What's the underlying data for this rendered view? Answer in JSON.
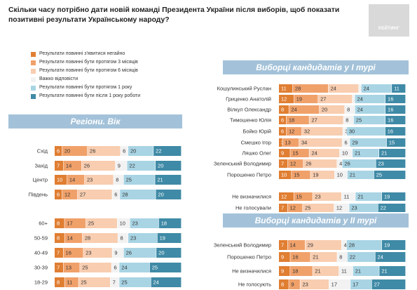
{
  "title": "Скільки часу потрібно дати новій команді Президента України після виборів, щоб показати позитивні результати Українському народу?",
  "logo": {
    "text": "РЕЙТИНГ"
  },
  "colors": [
    "#e07e32",
    "#f0a16a",
    "#f8cdb0",
    "#f2f2f2",
    "#a8d4e4",
    "#3f8aa6"
  ],
  "legend": [
    "Результати повинні з'явитися негайно",
    "Результати повинні бути протягом 3 місяців",
    "Результати повинні бути протягом 6 місяців",
    "Важко відповісти",
    "Результати повинні бути протягом 1 року",
    "Результати повинні бути після 1 року роботи"
  ],
  "banners": {
    "first_round": "Виборці кандидатів у І турі",
    "regions": "Регіони. Вік",
    "second_round": "Виборці кандидатів у ІІ турі"
  },
  "chart_data": [
    {
      "type": "bar",
      "stacked": "100%",
      "title": "Регіони. Вік",
      "categories": [
        "Схід",
        "Захід",
        "Центр",
        "Південь",
        "60+",
        "50-59",
        "40-49",
        "30-39",
        "18-29"
      ],
      "rows": [
        [
          6,
          20,
          26,
          6,
          20,
          22
        ],
        [
          7,
          14,
          26,
          9,
          22,
          20
        ],
        [
          10,
          14,
          23,
          8,
          25,
          21
        ],
        [
          6,
          12,
          27,
          6,
          28,
          20
        ],
        [
          8,
          17,
          25,
          10,
          23,
          18
        ],
        [
          8,
          14,
          28,
          8,
          23,
          19
        ],
        [
          7,
          16,
          23,
          9,
          26,
          20
        ],
        [
          7,
          13,
          25,
          6,
          24,
          25
        ],
        [
          8,
          11,
          25,
          7,
          25,
          24
        ]
      ]
    },
    {
      "type": "bar",
      "stacked": "100%",
      "title": "Виборці кандидатів у І турі",
      "categories": [
        "Кошулинський Руслан",
        "Гриценко Анатолій",
        "Вілкул Олександр",
        "Тимошенко Юлія",
        "Бойко Юрій",
        "Смешко Ігор",
        "Ляшко Олег",
        "Зеленський Володимир",
        "Порошенко Петро",
        "Не визначилися",
        "Не голосували"
      ],
      "rows": [
        [
          11,
          28,
          24,
          2,
          24,
          11
        ],
        [
          12,
          19,
          27,
          2,
          24,
          16
        ],
        [
          8,
          24,
          20,
          8,
          24,
          16
        ],
        [
          6,
          18,
          27,
          8,
          25,
          16
        ],
        [
          6,
          12,
          32,
          3,
          30,
          16
        ],
        [
          3,
          13,
          34,
          6,
          29,
          15
        ],
        [
          9,
          15,
          24,
          10,
          21,
          21
        ],
        [
          7,
          12,
          26,
          4,
          26,
          23
        ],
        [
          10,
          15,
          19,
          10,
          21,
          25
        ],
        [
          12,
          15,
          23,
          11,
          21,
          19
        ],
        [
          7,
          12,
          25,
          12,
          23,
          22
        ]
      ]
    },
    {
      "type": "bar",
      "stacked": "100%",
      "title": "Виборці кандидатів у ІІ турі",
      "categories": [
        "Зеленський Володимир",
        "Порошенко Петро",
        "Не визначилися",
        "Не голосують"
      ],
      "rows": [
        [
          7,
          14,
          29,
          4,
          28,
          19
        ],
        [
          9,
          16,
          21,
          8,
          22,
          24
        ],
        [
          9,
          18,
          21,
          11,
          21,
          21
        ],
        [
          8,
          9,
          23,
          17,
          17,
          27
        ]
      ]
    }
  ]
}
